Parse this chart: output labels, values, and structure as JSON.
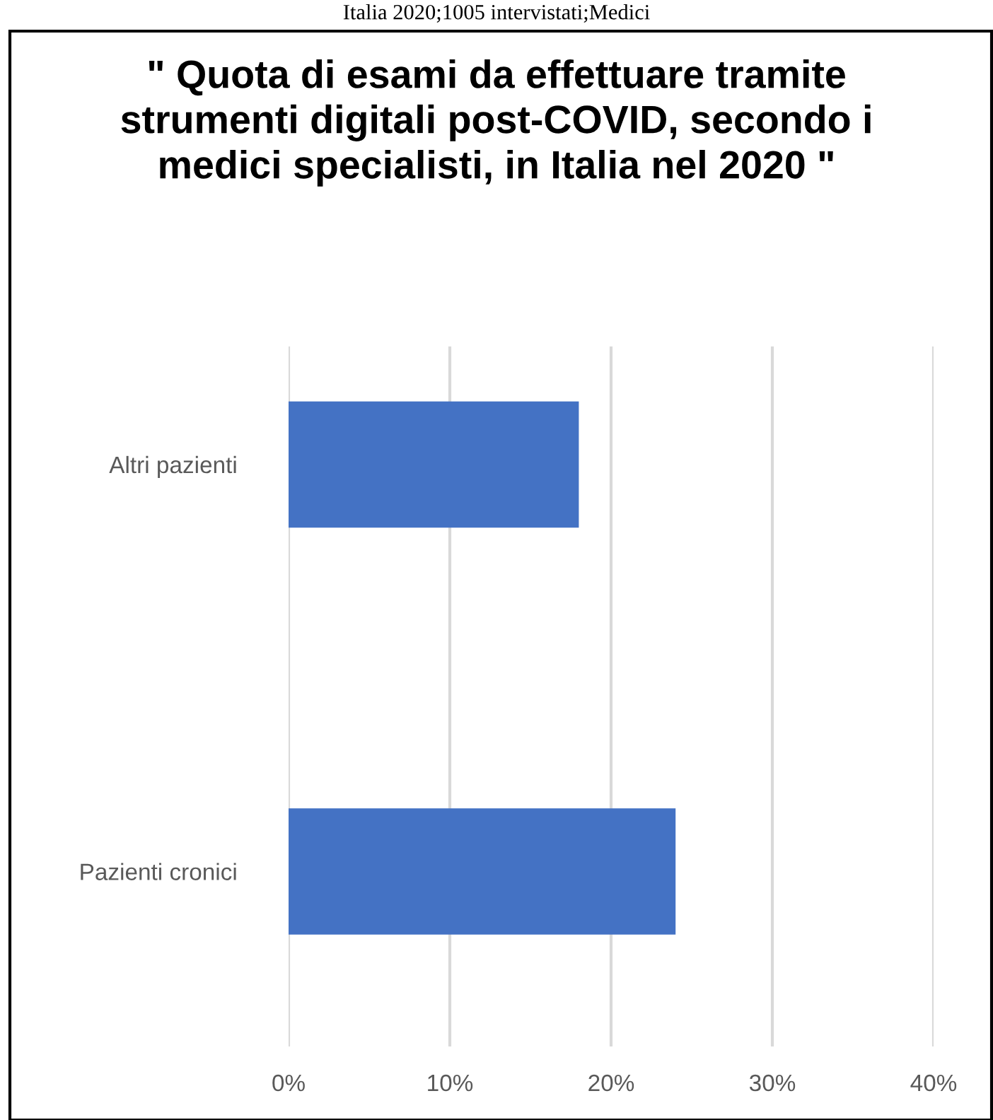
{
  "chart_data": {
    "type": "bar",
    "orientation": "horizontal",
    "title": "\" Quota di esami da effettuare tramite strumenti digitali post-COVID, secondo i medici specialisti, in Italia nel 2020 \"",
    "annotations": [
      "Italia 2020;1005 intervistati;Medici"
    ],
    "categories": [
      "Altri pazienti",
      "Pazienti cronici"
    ],
    "values": [
      0.18,
      0.24
    ],
    "color": "#4472c4",
    "xlim": [
      0,
      0.4
    ],
    "xticks": [
      {
        "value": 0,
        "label": "0%"
      },
      {
        "value": 0.1,
        "label": "10%"
      },
      {
        "value": 0.2,
        "label": "20%"
      },
      {
        "value": 0.3,
        "label": "30%"
      },
      {
        "value": 0.4,
        "label": "40%"
      }
    ],
    "grid": "x",
    "legend": false
  }
}
